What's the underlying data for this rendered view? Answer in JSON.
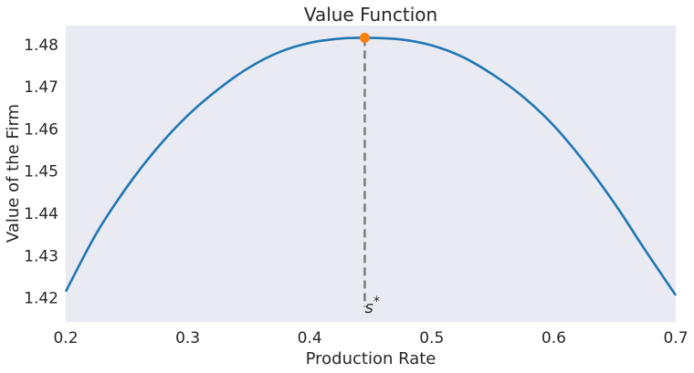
{
  "chart_data": {
    "type": "line",
    "title": "Value Function",
    "xlabel": "Production Rate",
    "ylabel": "Value of the Firm",
    "xlim": [
      0.2,
      0.7
    ],
    "ylim": [
      1.4143,
      1.4845
    ],
    "xticks": [
      0.2,
      0.3,
      0.4,
      0.5,
      0.6,
      0.7
    ],
    "yticks": [
      1.42,
      1.43,
      1.44,
      1.45,
      1.46,
      1.47,
      1.48
    ],
    "xtick_labels": [
      "0.2",
      "0.3",
      "0.4",
      "0.5",
      "0.6",
      "0.7"
    ],
    "ytick_labels": [
      "1.42",
      "1.43",
      "1.44",
      "1.45",
      "1.46",
      "1.47",
      "1.48"
    ],
    "grid": false,
    "series": [
      {
        "color": "#1f77b4",
        "x": [
          0.2,
          0.225,
          0.25,
          0.275,
          0.3,
          0.325,
          0.35,
          0.375,
          0.4,
          0.425,
          0.4451,
          0.475,
          0.5,
          0.525,
          0.55,
          0.575,
          0.6,
          0.625,
          0.65,
          0.675,
          0.7
        ],
        "y": [
          1.4215,
          1.4352,
          1.4462,
          1.4555,
          1.4632,
          1.4694,
          1.4745,
          1.4782,
          1.4804,
          1.4814,
          1.4816,
          1.4812,
          1.4798,
          1.4771,
          1.4729,
          1.4676,
          1.4608,
          1.4522,
          1.4423,
          1.4313,
          1.4206
        ]
      }
    ],
    "optimum": {
      "x": 0.4451,
      "y": 1.4816,
      "label": "s*",
      "marker_color": "#ff7f0e",
      "line_color": "#7f7f7f"
    }
  }
}
